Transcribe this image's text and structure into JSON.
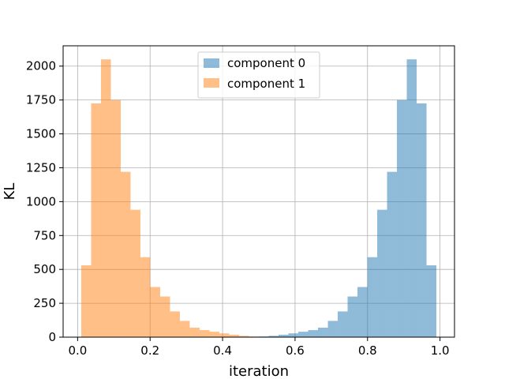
{
  "chart_data": {
    "type": "histogram",
    "title": "",
    "xlabel": "iteration",
    "ylabel": "KL",
    "xlim": [
      -0.04,
      1.04
    ],
    "ylim": [
      0,
      2150
    ],
    "xticks": [
      0.0,
      0.2,
      0.4,
      0.6,
      0.8,
      1.0
    ],
    "xtick_labels": [
      "0.0",
      "0.2",
      "0.4",
      "0.6",
      "0.8",
      "1.0"
    ],
    "yticks": [
      0,
      250,
      500,
      750,
      1000,
      1250,
      1500,
      1750,
      2000
    ],
    "ytick_labels": [
      "0",
      "250",
      "500",
      "750",
      "1000",
      "1250",
      "1500",
      "1750",
      "2000"
    ],
    "grid": true,
    "legend_position": "upper-center",
    "bin_edges": [
      0.01,
      0.0372,
      0.0644,
      0.0917,
      0.1189,
      0.1461,
      0.1733,
      0.2006,
      0.2278,
      0.255,
      0.2822,
      0.3094,
      0.3367,
      0.3639,
      0.3911,
      0.4183,
      0.4456,
      0.4728,
      0.5,
      0.5272,
      0.5544,
      0.5817,
      0.6089,
      0.6361,
      0.6633,
      0.6906,
      0.7178,
      0.745,
      0.7722,
      0.7994,
      0.8267,
      0.8539,
      0.8811,
      0.9083,
      0.9356,
      0.9628,
      0.99
    ],
    "series": [
      {
        "name": "component 0",
        "color": "#1f77b4",
        "alpha": 0.5,
        "values": [
          0,
          0,
          0,
          0,
          0,
          0,
          0,
          0,
          0,
          0,
          0,
          0,
          0,
          0,
          0,
          0,
          0,
          0,
          5,
          10,
          18,
          28,
          40,
          52,
          70,
          120,
          190,
          300,
          370,
          590,
          940,
          1220,
          1750,
          2050,
          1725,
          530
        ]
      },
      {
        "name": "component 1",
        "color": "#ff7f0e",
        "alpha": 0.5,
        "values": [
          530,
          1725,
          2050,
          1750,
          1220,
          940,
          590,
          370,
          300,
          190,
          120,
          70,
          52,
          40,
          28,
          18,
          10,
          5,
          0,
          0,
          0,
          0,
          0,
          0,
          0,
          0,
          0,
          0,
          0,
          0,
          0,
          0,
          0,
          0,
          0,
          0
        ]
      }
    ]
  }
}
